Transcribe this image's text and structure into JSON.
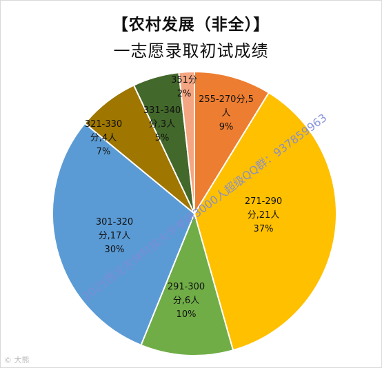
{
  "title": {
    "line1": "【农村发展（非全）】",
    "line2": "一志愿录取初试成绩"
  },
  "chart_data": {
    "type": "pie",
    "start_angle_deg": 0,
    "slices": [
      {
        "range": "255-270分",
        "count": "5人",
        "percent": "9%",
        "value": 5,
        "color": "#ed7d31"
      },
      {
        "range": "271-290分",
        "count": "21人",
        "percent": "37%",
        "value": 21,
        "color": "#ffc000"
      },
      {
        "range": "291-300分",
        "count": "6人",
        "percent": "10%",
        "value": 6,
        "color": "#70ad47"
      },
      {
        "range": "301-320分",
        "count": "17人",
        "percent": "30%",
        "value": 17,
        "color": "#5b9bd5"
      },
      {
        "range": "321-330分",
        "count": "4人",
        "percent": "7%",
        "value": 4,
        "color": "#9e7600"
      },
      {
        "range": "331-340分",
        "count": "3人",
        "percent": "5%",
        "value": 3,
        "color": "#43682b"
      },
      {
        "range": "351分",
        "count": "",
        "percent": "2%",
        "value": 1,
        "color": "#f4a582"
      }
    ]
  },
  "watermark": "2025西北农林科技大学考研3000人超级QQ群：937859963",
  "corner_mark": "© 大熊"
}
